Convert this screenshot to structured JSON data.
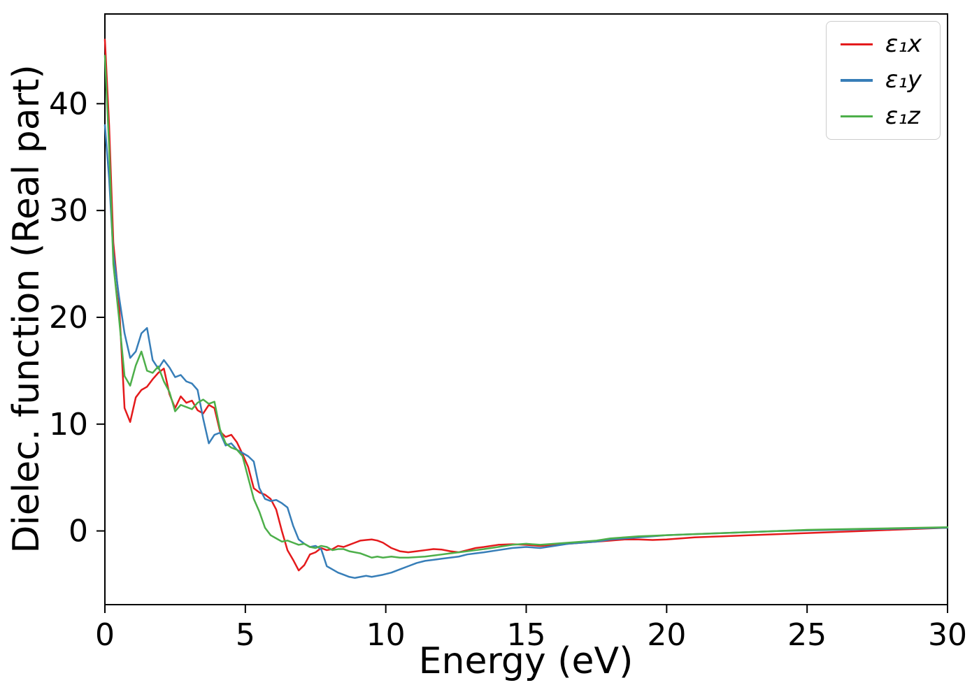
{
  "chart_data": {
    "type": "line",
    "title": "",
    "xlabel": "Energy (eV)",
    "ylabel": "Dielec. function (Real part)",
    "xlim": [
      0,
      30
    ],
    "ylim": [
      -6.9,
      48.4
    ],
    "xticks": [
      0,
      5,
      10,
      15,
      20,
      25,
      30
    ],
    "yticks": [
      0,
      10,
      20,
      30,
      40
    ],
    "grid": false,
    "legend_position": "upper right",
    "x": [
      0,
      0.15,
      0.3,
      0.5,
      0.7,
      0.9,
      1.1,
      1.3,
      1.5,
      1.7,
      1.9,
      2.1,
      2.3,
      2.5,
      2.7,
      2.9,
      3.1,
      3.3,
      3.5,
      3.7,
      3.9,
      4.1,
      4.3,
      4.5,
      4.7,
      4.9,
      5.1,
      5.3,
      5.5,
      5.7,
      5.9,
      6.1,
      6.3,
      6.5,
      6.7,
      6.9,
      7.1,
      7.3,
      7.5,
      7.7,
      7.9,
      8.1,
      8.3,
      8.5,
      8.7,
      8.9,
      9.1,
      9.3,
      9.5,
      9.7,
      9.9,
      10.2,
      10.5,
      10.8,
      11.1,
      11.4,
      11.7,
      12.0,
      12.3,
      12.6,
      12.9,
      13.2,
      13.5,
      14.0,
      14.5,
      15.0,
      15.5,
      16.0,
      16.5,
      17.0,
      17.5,
      18.0,
      18.5,
      19.0,
      19.5,
      20.0,
      21,
      22,
      23,
      24,
      25,
      26,
      27,
      28,
      29,
      30
    ],
    "series": [
      {
        "name": "ε₁x",
        "color": "#e41a1c",
        "values": [
          46,
          38,
          27,
          21.5,
          11.5,
          10.2,
          12.5,
          13.2,
          13.5,
          14.2,
          14.8,
          15.2,
          12.8,
          11.5,
          12.6,
          12.0,
          12.2,
          11.3,
          11.0,
          11.8,
          11.5,
          9.3,
          8.8,
          9.0,
          8.3,
          7.2,
          6.0,
          4.0,
          3.6,
          3.4,
          3.0,
          2.0,
          0.0,
          -1.8,
          -2.7,
          -3.7,
          -3.2,
          -2.2,
          -2.0,
          -1.6,
          -1.8,
          -1.7,
          -1.4,
          -1.5,
          -1.3,
          -1.1,
          -0.9,
          -0.85,
          -0.8,
          -0.9,
          -1.1,
          -1.6,
          -1.9,
          -2.0,
          -1.9,
          -1.8,
          -1.7,
          -1.75,
          -1.9,
          -2.0,
          -1.8,
          -1.6,
          -1.5,
          -1.3,
          -1.25,
          -1.3,
          -1.4,
          -1.3,
          -1.2,
          -1.1,
          -1.0,
          -0.9,
          -0.8,
          -0.8,
          -0.85,
          -0.8,
          -0.6,
          -0.5,
          -0.4,
          -0.3,
          -0.2,
          -0.1,
          0.0,
          0.1,
          0.2,
          0.3
        ]
      },
      {
        "name": "ε₁y",
        "color": "#377eb8",
        "values": [
          38,
          33,
          26,
          22,
          18.5,
          16.2,
          16.8,
          18.5,
          19.0,
          16.0,
          15.2,
          16.0,
          15.3,
          14.4,
          14.6,
          14.0,
          13.8,
          13.2,
          10.5,
          8.2,
          9.0,
          9.2,
          8.0,
          8.2,
          7.6,
          7.3,
          7.0,
          6.5,
          4.0,
          3.0,
          2.8,
          2.9,
          2.6,
          2.2,
          0.5,
          -0.8,
          -1.2,
          -1.5,
          -1.4,
          -1.7,
          -3.3,
          -3.6,
          -3.9,
          -4.1,
          -4.3,
          -4.4,
          -4.3,
          -4.2,
          -4.3,
          -4.2,
          -4.1,
          -3.9,
          -3.6,
          -3.3,
          -3.0,
          -2.8,
          -2.7,
          -2.6,
          -2.5,
          -2.4,
          -2.2,
          -2.1,
          -2.0,
          -1.8,
          -1.6,
          -1.5,
          -1.6,
          -1.4,
          -1.2,
          -1.1,
          -1.0,
          -0.8,
          -0.7,
          -0.6,
          -0.5,
          -0.4,
          -0.3,
          -0.2,
          -0.1,
          0.0,
          0.05,
          0.1,
          0.15,
          0.2,
          0.25,
          0.3
        ]
      },
      {
        "name": "ε₁z",
        "color": "#4daf4a",
        "values": [
          44.5,
          36,
          25,
          20,
          14.5,
          13.6,
          15.5,
          16.8,
          15.0,
          14.8,
          15.4,
          14.0,
          13.0,
          11.2,
          11.8,
          11.6,
          11.4,
          12.0,
          12.3,
          11.9,
          12.1,
          9.5,
          8.2,
          7.8,
          7.6,
          7.0,
          5.0,
          3.0,
          1.8,
          0.3,
          -0.4,
          -0.7,
          -1.0,
          -0.9,
          -1.1,
          -1.3,
          -1.2,
          -1.5,
          -1.6,
          -1.4,
          -1.5,
          -1.8,
          -1.7,
          -1.7,
          -1.9,
          -2.0,
          -2.1,
          -2.3,
          -2.5,
          -2.4,
          -2.5,
          -2.4,
          -2.5,
          -2.5,
          -2.45,
          -2.4,
          -2.3,
          -2.2,
          -2.1,
          -2.0,
          -1.9,
          -1.8,
          -1.7,
          -1.5,
          -1.3,
          -1.2,
          -1.3,
          -1.2,
          -1.1,
          -1.0,
          -0.9,
          -0.7,
          -0.6,
          -0.5,
          -0.45,
          -0.4,
          -0.3,
          -0.2,
          -0.1,
          0.0,
          0.1,
          0.15,
          0.2,
          0.25,
          0.3,
          0.35
        ]
      }
    ]
  }
}
